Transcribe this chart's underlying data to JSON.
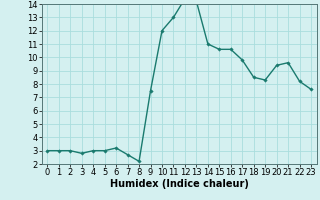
{
  "x": [
    0,
    1,
    2,
    3,
    4,
    5,
    6,
    7,
    8,
    9,
    10,
    11,
    12,
    13,
    14,
    15,
    16,
    17,
    18,
    19,
    20,
    21,
    22,
    23
  ],
  "y": [
    3.0,
    3.0,
    3.0,
    2.8,
    3.0,
    3.0,
    3.2,
    2.7,
    2.2,
    7.5,
    12.0,
    13.0,
    14.4,
    14.2,
    11.0,
    10.6,
    10.6,
    9.8,
    8.5,
    8.3,
    9.4,
    9.6,
    8.2,
    7.6
  ],
  "line_color": "#1a7a6e",
  "marker": "D",
  "marker_size": 1.8,
  "bg_color": "#d4f0f0",
  "grid_color": "#aadddd",
  "xlabel": "Humidex (Indice chaleur)",
  "xlim": [
    -0.5,
    23.5
  ],
  "ylim": [
    2,
    14
  ],
  "yticks": [
    2,
    3,
    4,
    5,
    6,
    7,
    8,
    9,
    10,
    11,
    12,
    13,
    14
  ],
  "xticks": [
    0,
    1,
    2,
    3,
    4,
    5,
    6,
    7,
    8,
    9,
    10,
    11,
    12,
    13,
    14,
    15,
    16,
    17,
    18,
    19,
    20,
    21,
    22,
    23
  ],
  "xlabel_fontsize": 7.0,
  "tick_fontsize": 6.0,
  "linewidth": 1.0
}
